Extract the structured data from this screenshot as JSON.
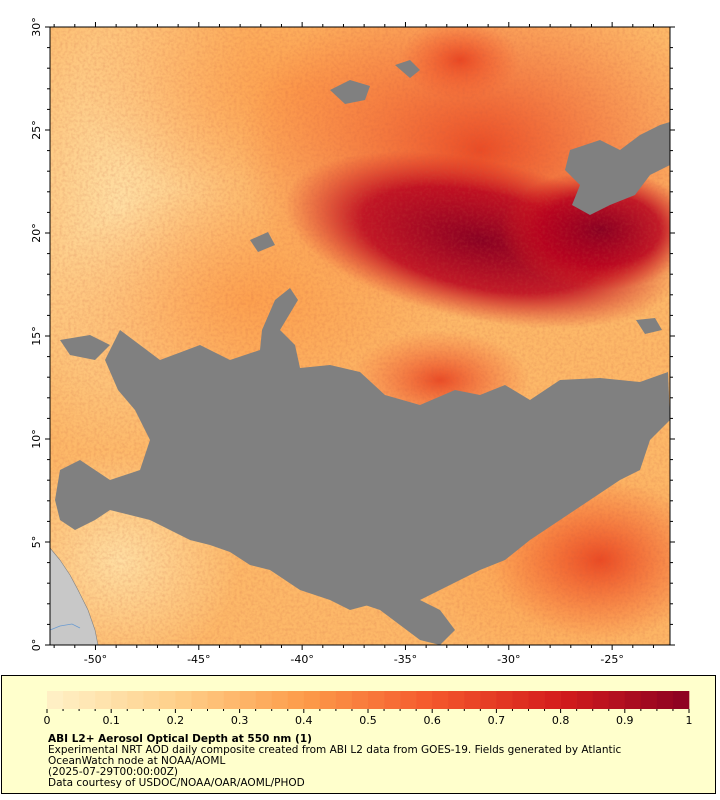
{
  "map": {
    "lat_ticks": [
      "30°",
      "25°",
      "20°",
      "15°",
      "10°",
      "5°",
      "0°"
    ],
    "lon_ticks": [
      "-50°",
      "-45°",
      "-40°",
      "-35°",
      "-30°",
      "-25°"
    ],
    "lat_range": [
      0,
      30
    ],
    "lon_range": [
      -52.2,
      -22.2
    ],
    "colors": {
      "no_data": "#808080",
      "land": "#c8c8c8",
      "scale": [
        "#fff1c8",
        "#fed08a",
        "#fd9c4a",
        "#f4582c",
        "#d41c1c",
        "#8a0022"
      ]
    }
  },
  "legend": {
    "ticks": [
      "0",
      "0.1",
      "0.2",
      "0.3",
      "0.4",
      "0.5",
      "0.6",
      "0.7",
      "0.8",
      "0.9",
      "1"
    ],
    "title": "ABI L2+ Aerosol Optical Depth at 550 nm (1)",
    "line1": "Experimental NRT AOD daily composite created from ABI L2 data from GOES-19. Fields generated by Atlantic",
    "line2": "OceanWatch node at NOAA/AOML",
    "line3": "(2025-07-29T00:00:00Z)",
    "line4": "Data courtesy of USDOC/NOAA/OAR/AOML/PHOD"
  }
}
